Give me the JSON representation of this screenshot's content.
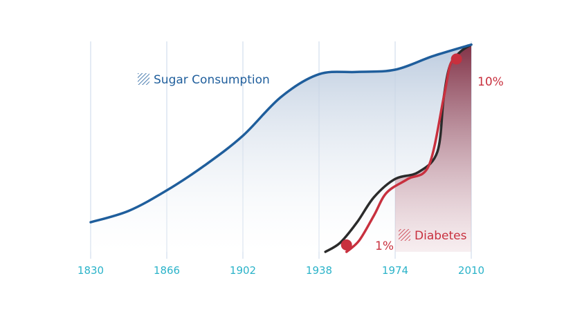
{
  "chart_data": {
    "type": "area",
    "title": "",
    "xlabel": "",
    "ylabel": "",
    "x_ticks": [
      "1830",
      "1866",
      "1902",
      "1938",
      "1974",
      "2010"
    ],
    "xlim": [
      1830,
      2010
    ],
    "ylim": [
      0,
      100
    ],
    "grid": "vertical gridlines at each x tick",
    "legend": "inline labels",
    "colors": {
      "sugar_line": "#1f5e9c",
      "sugar_fill_top": "#b9c9dd",
      "diabetes_line": "#c8303e",
      "diabetes_fill": "#8b2a3a",
      "diabetes_black": "#2b2b2b",
      "gridline": "#c9d7e8",
      "tick_text": "#2bb3c9"
    },
    "series": [
      {
        "name": "Sugar Consumption",
        "color": "#1f5e9c",
        "points": [
          [
            1830,
            13
          ],
          [
            1848,
            18
          ],
          [
            1866,
            27
          ],
          [
            1884,
            38
          ],
          [
            1902,
            51
          ],
          [
            1920,
            68
          ],
          [
            1938,
            78
          ],
          [
            1956,
            79
          ],
          [
            1974,
            80
          ],
          [
            1992,
            86
          ],
          [
            2010,
            91
          ]
        ]
      },
      {
        "name": "Diabetes",
        "color": "#c8303e",
        "start_label": "1%",
        "end_label": "10%",
        "points": [
          [
            1951,
            0
          ],
          [
            1957,
            5
          ],
          [
            1964,
            16
          ],
          [
            1970,
            26
          ],
          [
            1980,
            32
          ],
          [
            1990,
            38
          ],
          [
            1997,
            68
          ],
          [
            2000,
            82
          ],
          [
            2003,
            85
          ]
        ]
      },
      {
        "name": "",
        "color": "#2b2b2b",
        "points": [
          [
            1941,
            0
          ],
          [
            1948,
            4
          ],
          [
            1956,
            13
          ],
          [
            1964,
            24
          ],
          [
            1974,
            32
          ],
          [
            1985,
            35
          ],
          [
            1994,
            44
          ],
          [
            1997,
            68
          ],
          [
            2000,
            82
          ],
          [
            2005,
            88
          ],
          [
            2010,
            91
          ]
        ]
      }
    ]
  }
}
